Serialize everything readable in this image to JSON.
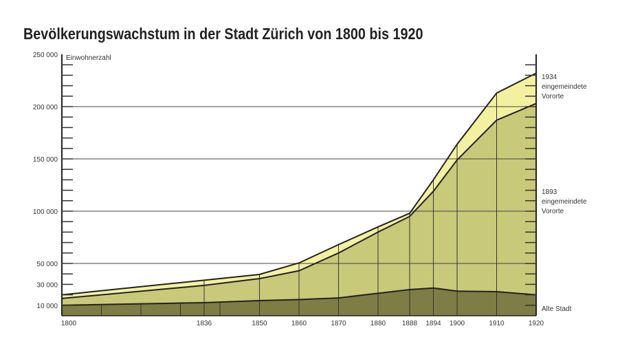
{
  "chart_data": {
    "type": "area",
    "title": "Bevölkerungswachstum in der Stadt Zürich von 1800 bis 1920",
    "ylabel": "Einwohnerzahl",
    "xlabel": "",
    "ylim": [
      0,
      250000
    ],
    "xlim": [
      1800,
      1920
    ],
    "grid": true,
    "y_ticks": [
      250000,
      200000,
      150000,
      100000,
      50000,
      30000,
      10000
    ],
    "y_tick_labels": [
      "250 000",
      "200 000",
      "150 000",
      "100 000",
      "50 000",
      "30 000",
      "10 000"
    ],
    "x": [
      1800,
      1836,
      1850,
      1860,
      1870,
      1880,
      1888,
      1894,
      1900,
      1910,
      1920
    ],
    "x_tick_labels": [
      "1800",
      "1836",
      "1850",
      "1860",
      "1870",
      "1880",
      "1888",
      "1894",
      "1900",
      "1910",
      "1920"
    ],
    "series": [
      {
        "name": "Alte Stadt",
        "label_lines": [
          "Alte Stadt"
        ],
        "color": "#7d7d45",
        "values": [
          10000,
          12500,
          14500,
          15500,
          17000,
          21500,
          25000,
          26500,
          23500,
          23000,
          20000
        ]
      },
      {
        "name": "1893 eingemeindete Vororte",
        "label_lines": [
          "1893",
          "eingemeindete",
          "Vororte"
        ],
        "color": "#c9c97a",
        "values": [
          16500,
          29000,
          35500,
          43000,
          60000,
          80000,
          95000,
          119000,
          149000,
          187000,
          203000
        ]
      },
      {
        "name": "1934 eingemeindete Vororte",
        "label_lines": [
          "1934",
          "eingemeindete",
          "Vororte"
        ],
        "color": "#f3f1a0",
        "values": [
          20000,
          34000,
          39500,
          50500,
          68000,
          85000,
          98000,
          130000,
          164000,
          213000,
          232000
        ]
      }
    ]
  }
}
